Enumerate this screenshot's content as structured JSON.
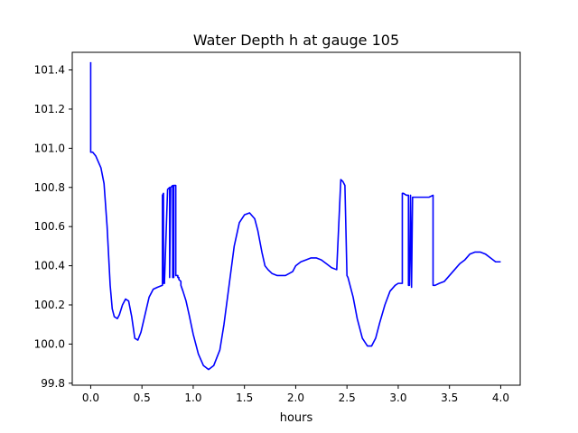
{
  "chart_data": {
    "type": "line",
    "title": "Water Depth h at gauge 105",
    "xlabel": "hours",
    "ylabel": "",
    "xlim": [
      -0.18,
      4.19
    ],
    "ylim": [
      99.79,
      101.49
    ],
    "grid": false,
    "x_ticks": [
      0.0,
      0.5,
      1.0,
      1.5,
      2.0,
      2.5,
      3.0,
      3.5,
      4.0
    ],
    "x_tick_labels": [
      "0.0",
      "0.5",
      "1.0",
      "1.5",
      "2.0",
      "2.5",
      "3.0",
      "3.5",
      "4.0"
    ],
    "y_ticks": [
      99.8,
      100.0,
      100.2,
      100.4,
      100.6,
      100.8,
      101.0,
      101.2,
      101.4
    ],
    "y_tick_labels": [
      "99.8",
      "100.0",
      "100.2",
      "100.4",
      "100.6",
      "100.8",
      "101.0",
      "101.2",
      "101.4"
    ],
    "series": [
      {
        "color": "#0000ff",
        "x": [
          0.0,
          0.0,
          0.0,
          0.02,
          0.05,
          0.1,
          0.13,
          0.16,
          0.19,
          0.21,
          0.23,
          0.26,
          0.28,
          0.31,
          0.34,
          0.37,
          0.4,
          0.43,
          0.46,
          0.49,
          0.53,
          0.57,
          0.61,
          0.65,
          0.7,
          0.7,
          0.71,
          0.71,
          0.72,
          0.72,
          0.75,
          0.77,
          0.77,
          0.78,
          0.8,
          0.8,
          0.81,
          0.81,
          0.83,
          0.83,
          0.85,
          0.85,
          0.86,
          0.86,
          0.88,
          0.88,
          0.9,
          0.93,
          0.96,
          1.0,
          1.05,
          1.1,
          1.15,
          1.2,
          1.26,
          1.3,
          1.35,
          1.4,
          1.45,
          1.5,
          1.55,
          1.6,
          1.63,
          1.67,
          1.7,
          1.73,
          1.77,
          1.82,
          1.9,
          1.97,
          2.0,
          2.05,
          2.1,
          2.15,
          2.2,
          2.25,
          2.3,
          2.35,
          2.4,
          2.44,
          2.46,
          2.47,
          2.48,
          2.5,
          2.51,
          2.53,
          2.56,
          2.6,
          2.65,
          2.7,
          2.74,
          2.78,
          2.82,
          2.87,
          2.92,
          2.97,
          3.0,
          3.04,
          3.04,
          3.05,
          3.08,
          3.1,
          3.1,
          3.11,
          3.12,
          3.12,
          3.13,
          3.13,
          3.14,
          3.14,
          3.15,
          3.2,
          3.25,
          3.3,
          3.34,
          3.34,
          3.36,
          3.4,
          3.45,
          3.5,
          3.55,
          3.6,
          3.65,
          3.7,
          3.75,
          3.8,
          3.85,
          3.9,
          3.95,
          4.0
        ],
        "y": [
          101.44,
          100.98,
          100.98,
          100.98,
          100.96,
          100.9,
          100.82,
          100.6,
          100.3,
          100.18,
          100.14,
          100.13,
          100.15,
          100.2,
          100.23,
          100.22,
          100.14,
          100.03,
          100.02,
          100.06,
          100.15,
          100.24,
          100.28,
          100.29,
          100.3,
          100.76,
          100.77,
          100.31,
          100.31,
          100.32,
          100.79,
          100.8,
          100.34,
          100.8,
          100.81,
          100.34,
          100.34,
          100.81,
          100.81,
          100.35,
          100.35,
          100.34,
          100.34,
          100.33,
          100.32,
          100.3,
          100.27,
          100.22,
          100.15,
          100.05,
          99.95,
          99.89,
          99.87,
          99.89,
          99.97,
          100.1,
          100.3,
          100.5,
          100.62,
          100.66,
          100.67,
          100.64,
          100.58,
          100.47,
          100.4,
          100.38,
          100.36,
          100.35,
          100.35,
          100.37,
          100.4,
          100.42,
          100.43,
          100.44,
          100.44,
          100.43,
          100.41,
          100.39,
          100.38,
          100.84,
          100.83,
          100.82,
          100.81,
          100.35,
          100.34,
          100.3,
          100.24,
          100.13,
          100.03,
          99.99,
          99.99,
          100.03,
          100.11,
          100.2,
          100.27,
          100.3,
          100.31,
          100.31,
          100.77,
          100.77,
          100.76,
          100.76,
          100.3,
          100.3,
          100.76,
          100.76,
          100.29,
          100.29,
          100.75,
          100.75,
          100.75,
          100.75,
          100.75,
          100.75,
          100.76,
          100.3,
          100.3,
          100.31,
          100.32,
          100.35,
          100.38,
          100.41,
          100.43,
          100.46,
          100.47,
          100.47,
          100.46,
          100.44,
          100.42,
          100.42
        ]
      }
    ]
  }
}
